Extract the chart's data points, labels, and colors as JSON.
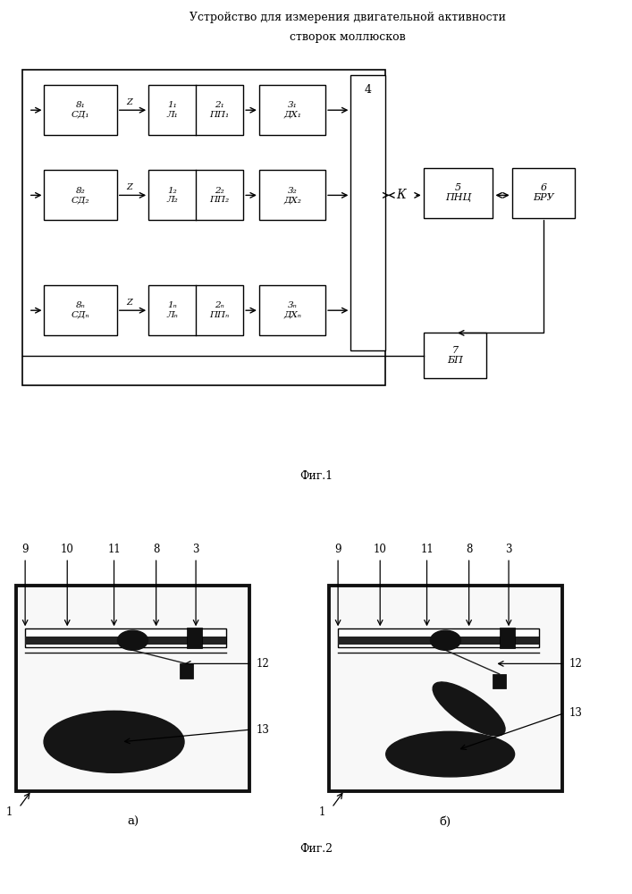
{
  "title_line1": "Устройство для измерения двигательной активности",
  "title_line2": "створок моллюсков",
  "fig1_caption": "Фиг.1",
  "fig2_caption": "Фиг.2",
  "bg_color": "#ffffff",
  "fig1": {
    "rows": [
      {
        "sd_label": "8₁\nСД₁",
        "lamp_label": "1₁\nЛ₁",
        "pp_label": "2₁\nПП₁",
        "dx_label": "3₁\nДХ₁"
      },
      {
        "sd_label": "8₂\nСД₂",
        "lamp_label": "1₂\nЛ₂",
        "pp_label": "2₂\nПП₂",
        "dx_label": "3₂\nДХ₂"
      },
      {
        "sd_label": "8ₙ\nСДₙ",
        "lamp_label": "1ₙ\nЛₙ",
        "pp_label": "2ₙ\nППₙ",
        "dx_label": "3ₙ\nДХₙ"
      }
    ],
    "K_label": "К",
    "block4_label": "4",
    "block5_label": "5\nПНЦ",
    "block6_label": "6\nБРУ",
    "block7_label": "7\nБП"
  }
}
